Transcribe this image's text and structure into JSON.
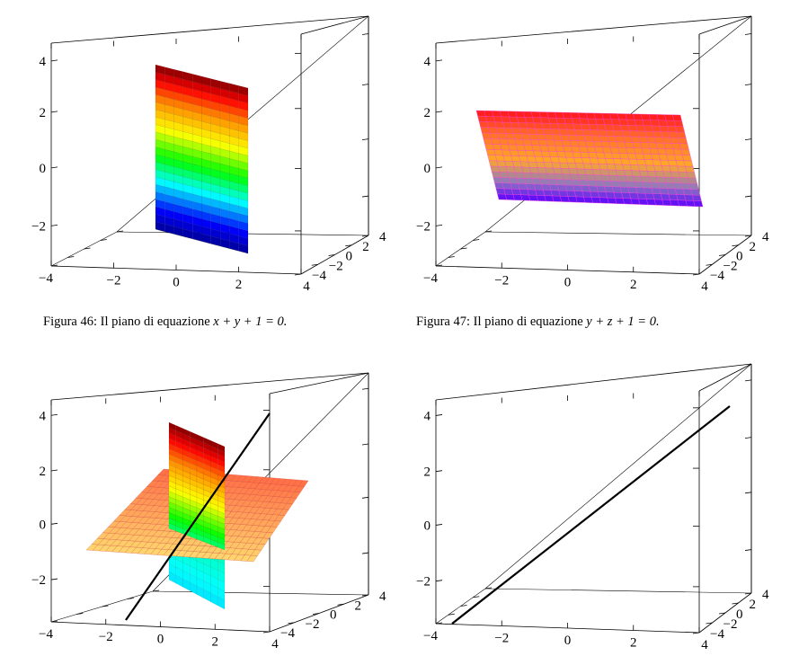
{
  "captions": {
    "fig46": {
      "label": "Figura 46:",
      "text": "Il piano di equazione",
      "equation": "x + y + 1 = 0."
    },
    "fig47": {
      "label": "Figura 47:",
      "text": "Il piano di equazione",
      "equation": "y + z + 1 = 0."
    }
  },
  "chart_data": [
    {
      "type": "surface3d",
      "name": "fig46",
      "surfaces": [
        {
          "equation": "x + y + 1 = 0",
          "colormap": "jet",
          "z_range": [
            -2.3,
            4.2
          ]
        }
      ],
      "axes": {
        "x_ticks": [
          "−4",
          "−2",
          "0",
          "2",
          "4"
        ],
        "y_ticks": [
          "−4",
          "−2",
          "0",
          "2",
          "4"
        ],
        "z_ticks": [
          "−2",
          "0",
          "2",
          "4"
        ]
      }
    },
    {
      "type": "surface3d",
      "name": "fig47",
      "surfaces": [
        {
          "equation": "y + z + 1 = 0",
          "colormap": "hot-blue",
          "z_range": [
            -1.2,
            2.2
          ]
        }
      ],
      "axes": {
        "x_ticks": [
          "−4",
          "−2",
          "0",
          "2",
          "4"
        ],
        "y_ticks": [
          "−4",
          "−2",
          "0",
          "2",
          "4"
        ],
        "z_ticks": [
          "−2",
          "0",
          "2",
          "4"
        ]
      }
    },
    {
      "type": "surface3d",
      "name": "fig48",
      "surfaces": [
        {
          "equation": "x + y + 1 = 0",
          "colormap": "jet"
        },
        {
          "equation": "y + z + 1 = 0",
          "colormap": "orange"
        }
      ],
      "lines": [
        {
          "description": "intersection of the two planes",
          "color": "#000000"
        }
      ],
      "axes": {
        "x_ticks": [
          "−4",
          "−2",
          "0",
          "2",
          "4"
        ],
        "y_ticks": [
          "−4",
          "−2",
          "0",
          "2",
          "4"
        ],
        "z_ticks": [
          "−2",
          "0",
          "2",
          "4"
        ]
      }
    },
    {
      "type": "line3d",
      "name": "fig49",
      "lines": [
        {
          "description": "intersection line",
          "color": "#000000"
        }
      ],
      "axes": {
        "x_ticks": [
          "−4",
          "−2",
          "0",
          "2",
          "4"
        ],
        "y_ticks": [
          "−4",
          "−2",
          "0",
          "2",
          "4"
        ],
        "z_ticks": [
          "−2",
          "0",
          "2",
          "4"
        ]
      }
    }
  ]
}
